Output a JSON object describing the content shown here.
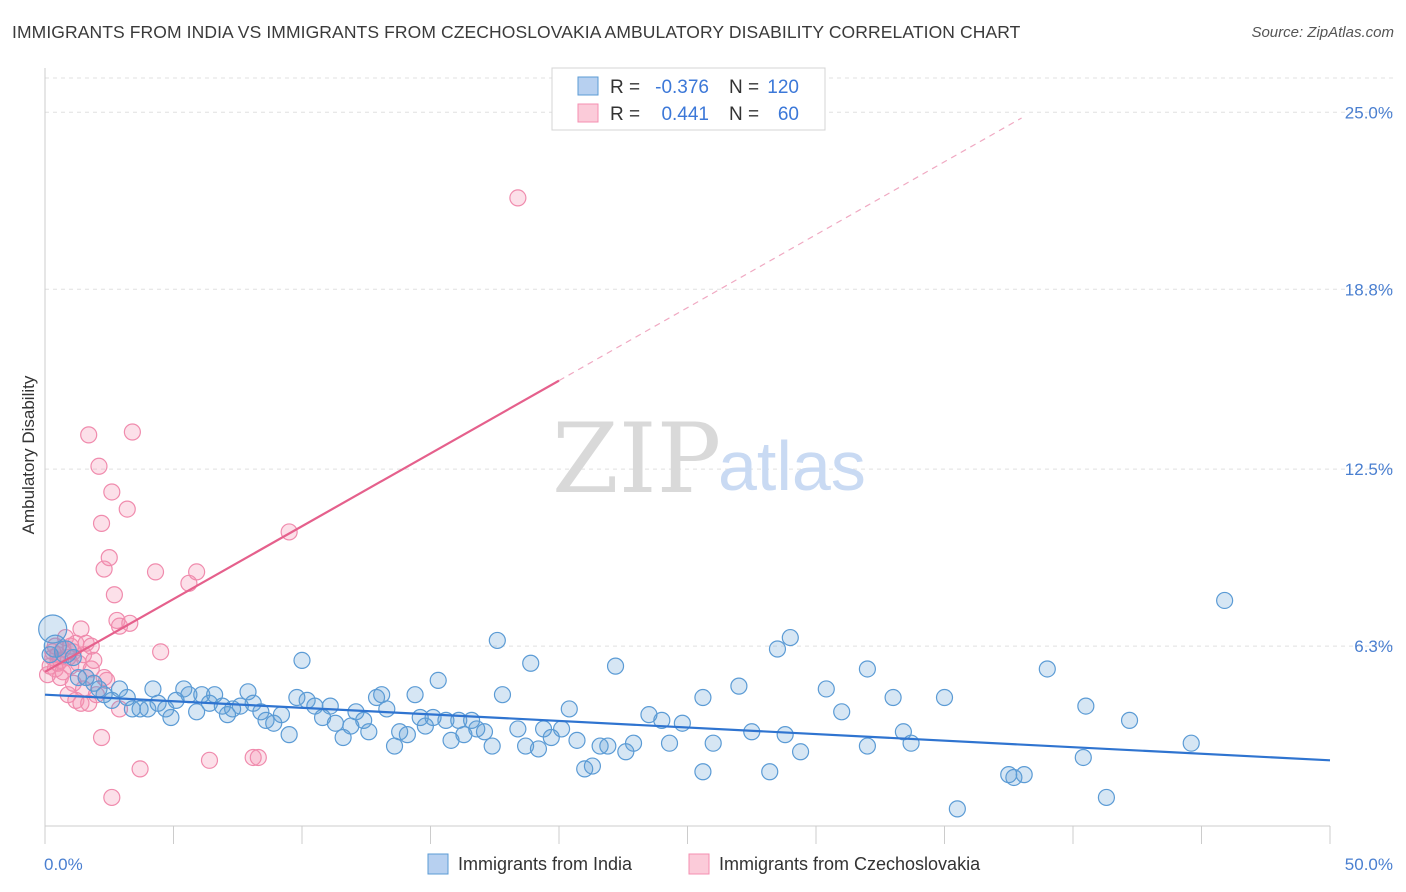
{
  "title": "IMMIGRANTS FROM INDIA VS IMMIGRANTS FROM CZECHOSLOVAKIA AMBULATORY DISABILITY CORRELATION CHART",
  "source": "Source: ZipAtlas.com",
  "watermark": {
    "zip": "ZIP",
    "atlas": "atlas"
  },
  "legend": {
    "r_label": "R =",
    "n_label": "N =",
    "rows": [
      {
        "r": "-0.376",
        "n": "120",
        "color": "#5b9bd5"
      },
      {
        "r": "0.441",
        "n": "60",
        "color": "#f48fb1"
      }
    ]
  },
  "chart_data": {
    "type": "scatter",
    "title": "IMMIGRANTS FROM INDIA VS IMMIGRANTS FROM CZECHOSLOVAKIA AMBULATORY DISABILITY CORRELATION CHART",
    "xlabel": "",
    "ylabel": "Ambulatory Disability",
    "xlim": [
      0,
      50
    ],
    "ylim": [
      0,
      26.2
    ],
    "x_tick_labels": [
      "0.0%",
      "50.0%"
    ],
    "y_tick_labels": [
      "6.3%",
      "12.5%",
      "18.8%",
      "25.0%"
    ],
    "y_ticks": [
      6.3,
      12.5,
      18.8,
      25.0
    ],
    "grid": true,
    "legend_position": "top-center",
    "series": [
      {
        "name": "Immigrants from India",
        "color": "#5b9bd5",
        "trend": {
          "x0": 0,
          "y0": 4.6,
          "x1": 50,
          "y1": 2.3
        },
        "points": [
          [
            0.3,
            6.9
          ],
          [
            0.4,
            6.3
          ],
          [
            0.8,
            6.1
          ],
          [
            1.1,
            5.9
          ],
          [
            1.3,
            5.2
          ],
          [
            1.6,
            5.2
          ],
          [
            1.9,
            5.0
          ],
          [
            2.1,
            4.8
          ],
          [
            2.3,
            4.6
          ],
          [
            2.6,
            4.4
          ],
          [
            2.9,
            4.8
          ],
          [
            3.2,
            4.5
          ],
          [
            3.4,
            4.1
          ],
          [
            3.7,
            4.1
          ],
          [
            4.0,
            4.1
          ],
          [
            4.2,
            4.8
          ],
          [
            4.4,
            4.3
          ],
          [
            4.7,
            4.1
          ],
          [
            4.9,
            3.8
          ],
          [
            5.1,
            4.4
          ],
          [
            5.4,
            4.8
          ],
          [
            5.6,
            4.6
          ],
          [
            5.9,
            4.0
          ],
          [
            6.1,
            4.6
          ],
          [
            6.4,
            4.3
          ],
          [
            6.6,
            4.6
          ],
          [
            6.9,
            4.2
          ],
          [
            7.1,
            3.9
          ],
          [
            7.3,
            4.1
          ],
          [
            7.6,
            4.2
          ],
          [
            7.9,
            4.7
          ],
          [
            8.1,
            4.3
          ],
          [
            8.4,
            4.0
          ],
          [
            8.6,
            3.7
          ],
          [
            8.9,
            3.6
          ],
          [
            9.2,
            3.9
          ],
          [
            9.5,
            3.2
          ],
          [
            9.8,
            4.5
          ],
          [
            10.0,
            5.8
          ],
          [
            10.2,
            4.4
          ],
          [
            10.5,
            4.2
          ],
          [
            10.8,
            3.8
          ],
          [
            11.1,
            4.2
          ],
          [
            11.3,
            3.6
          ],
          [
            11.6,
            3.1
          ],
          [
            11.9,
            3.5
          ],
          [
            12.1,
            4.0
          ],
          [
            12.4,
            3.7
          ],
          [
            12.6,
            3.3
          ],
          [
            12.9,
            4.5
          ],
          [
            13.1,
            4.6
          ],
          [
            13.3,
            4.1
          ],
          [
            13.6,
            2.8
          ],
          [
            13.8,
            3.3
          ],
          [
            14.1,
            3.2
          ],
          [
            14.4,
            4.6
          ],
          [
            14.6,
            3.8
          ],
          [
            14.8,
            3.5
          ],
          [
            15.1,
            3.8
          ],
          [
            15.3,
            5.1
          ],
          [
            15.6,
            3.7
          ],
          [
            15.8,
            3.0
          ],
          [
            16.1,
            3.7
          ],
          [
            16.3,
            3.2
          ],
          [
            16.6,
            3.7
          ],
          [
            16.8,
            3.4
          ],
          [
            17.1,
            3.3
          ],
          [
            17.4,
            2.8
          ],
          [
            17.6,
            6.5
          ],
          [
            17.8,
            4.6
          ],
          [
            18.4,
            3.4
          ],
          [
            18.7,
            2.8
          ],
          [
            18.9,
            5.7
          ],
          [
            19.2,
            2.7
          ],
          [
            19.4,
            3.4
          ],
          [
            19.7,
            3.1
          ],
          [
            20.1,
            3.4
          ],
          [
            20.4,
            4.1
          ],
          [
            20.7,
            3.0
          ],
          [
            21.0,
            2.0
          ],
          [
            21.3,
            2.1
          ],
          [
            21.6,
            2.8
          ],
          [
            21.9,
            2.8
          ],
          [
            22.2,
            5.6
          ],
          [
            22.6,
            2.6
          ],
          [
            22.9,
            2.9
          ],
          [
            23.5,
            3.9
          ],
          [
            24.0,
            3.7
          ],
          [
            24.3,
            2.9
          ],
          [
            24.8,
            3.6
          ],
          [
            25.6,
            4.5
          ],
          [
            25.6,
            1.9
          ],
          [
            26.0,
            2.9
          ],
          [
            27.0,
            4.9
          ],
          [
            27.5,
            3.3
          ],
          [
            28.2,
            1.9
          ],
          [
            28.5,
            6.2
          ],
          [
            28.8,
            3.2
          ],
          [
            29.0,
            6.6
          ],
          [
            29.4,
            2.6
          ],
          [
            30.4,
            4.8
          ],
          [
            31.0,
            4.0
          ],
          [
            32.0,
            2.8
          ],
          [
            32.0,
            5.5
          ],
          [
            33.0,
            4.5
          ],
          [
            33.4,
            3.3
          ],
          [
            33.7,
            2.9
          ],
          [
            35.0,
            4.5
          ],
          [
            35.5,
            0.6
          ],
          [
            37.5,
            1.8
          ],
          [
            37.7,
            1.7
          ],
          [
            38.1,
            1.8
          ],
          [
            39.0,
            5.5
          ],
          [
            40.4,
            2.4
          ],
          [
            40.5,
            4.2
          ],
          [
            41.3,
            1.0
          ],
          [
            42.2,
            3.7
          ],
          [
            44.6,
            2.9
          ],
          [
            45.9,
            7.9
          ],
          [
            0.2,
            6.0
          ]
        ]
      },
      {
        "name": "Immigrants from Czechoslovakia",
        "color": "#f48fb1",
        "trend": {
          "x0": 0,
          "y0": 5.4,
          "x1": 20,
          "y1": 15.6,
          "dash_to": {
            "x": 38,
            "y": 24.8
          }
        },
        "points": [
          [
            0.1,
            5.3
          ],
          [
            0.2,
            5.6
          ],
          [
            0.3,
            5.9
          ],
          [
            0.3,
            6.1
          ],
          [
            0.4,
            6.3
          ],
          [
            0.4,
            5.5
          ],
          [
            0.5,
            5.7
          ],
          [
            0.5,
            6.0
          ],
          [
            0.6,
            5.2
          ],
          [
            0.6,
            5.8
          ],
          [
            0.7,
            6.2
          ],
          [
            0.7,
            5.4
          ],
          [
            0.8,
            6.6
          ],
          [
            0.9,
            5.9
          ],
          [
            1.0,
            6.3
          ],
          [
            1.0,
            5.6
          ],
          [
            1.1,
            6.1
          ],
          [
            1.1,
            5.0
          ],
          [
            1.2,
            6.4
          ],
          [
            1.2,
            4.4
          ],
          [
            1.3,
            5.7
          ],
          [
            1.4,
            6.9
          ],
          [
            1.4,
            4.3
          ],
          [
            1.5,
            6.0
          ],
          [
            1.5,
            4.8
          ],
          [
            1.6,
            6.4
          ],
          [
            1.6,
            5.2
          ],
          [
            1.7,
            4.3
          ],
          [
            1.7,
            13.7
          ],
          [
            1.8,
            6.3
          ],
          [
            1.8,
            5.5
          ],
          [
            1.9,
            5.8
          ],
          [
            2.0,
            4.6
          ],
          [
            2.1,
            12.6
          ],
          [
            2.2,
            10.6
          ],
          [
            2.2,
            3.1
          ],
          [
            2.3,
            9.0
          ],
          [
            2.3,
            5.2
          ],
          [
            2.4,
            5.1
          ],
          [
            2.5,
            9.4
          ],
          [
            2.6,
            1.0
          ],
          [
            2.6,
            11.7
          ],
          [
            2.7,
            8.1
          ],
          [
            2.8,
            7.2
          ],
          [
            2.9,
            7.0
          ],
          [
            2.9,
            4.1
          ],
          [
            3.2,
            11.1
          ],
          [
            3.3,
            7.1
          ],
          [
            3.4,
            13.8
          ],
          [
            3.7,
            2.0
          ],
          [
            4.3,
            8.9
          ],
          [
            4.5,
            6.1
          ],
          [
            5.6,
            8.5
          ],
          [
            5.9,
            8.9
          ],
          [
            6.4,
            2.3
          ],
          [
            8.1,
            2.4
          ],
          [
            8.3,
            2.4
          ],
          [
            9.5,
            10.3
          ],
          [
            18.4,
            22.0
          ],
          [
            0.9,
            4.6
          ]
        ]
      }
    ]
  },
  "bottom_legend": [
    {
      "label": "Immigrants from India",
      "color": "#5b9bd5"
    },
    {
      "label": "Immigrants from Czechoslovakia",
      "color": "#f48fb1"
    }
  ]
}
